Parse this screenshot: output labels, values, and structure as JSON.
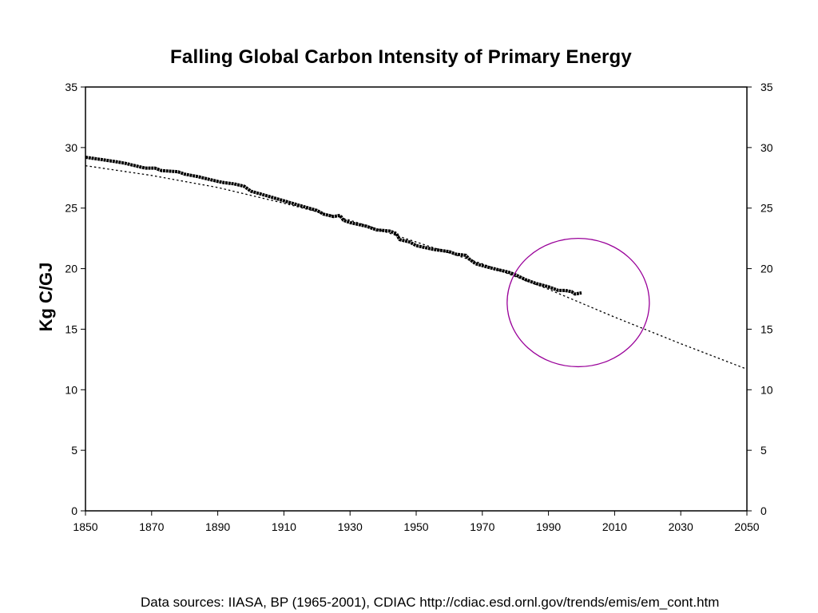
{
  "chart_data": {
    "type": "line",
    "title": "Falling Global Carbon Intensity of Primary Energy",
    "ylabel": "Kg C/GJ",
    "xlabel": "",
    "xlim": [
      1850,
      2050
    ],
    "ylim": [
      0,
      35
    ],
    "x_ticks": [
      "1850",
      "1870",
      "1890",
      "1910",
      "1930",
      "1950",
      "1970",
      "1990",
      "2010",
      "2030",
      "2050"
    ],
    "y_ticks": [
      "0",
      "5",
      "10",
      "15",
      "20",
      "25",
      "30",
      "35"
    ],
    "y_ticks_right": [
      "0",
      "5",
      "10",
      "15",
      "20",
      "25",
      "30",
      "35"
    ],
    "grid": false,
    "series": [
      {
        "style": "thick-marker-line",
        "color": "#000000",
        "points": [
          [
            1850,
            29.2
          ],
          [
            1855,
            29.0
          ],
          [
            1860,
            28.8
          ],
          [
            1862,
            28.7
          ],
          [
            1865,
            28.5
          ],
          [
            1868,
            28.3
          ],
          [
            1871,
            28.3
          ],
          [
            1873,
            28.1
          ],
          [
            1878,
            28.0
          ],
          [
            1880,
            27.8
          ],
          [
            1884,
            27.6
          ],
          [
            1887,
            27.4
          ],
          [
            1890,
            27.2
          ],
          [
            1892,
            27.1
          ],
          [
            1895,
            27.0
          ],
          [
            1898,
            26.8
          ],
          [
            1900,
            26.4
          ],
          [
            1905,
            26.0
          ],
          [
            1910,
            25.6
          ],
          [
            1915,
            25.2
          ],
          [
            1920,
            24.8
          ],
          [
            1922,
            24.5
          ],
          [
            1925,
            24.3
          ],
          [
            1927,
            24.4
          ],
          [
            1928,
            24.0
          ],
          [
            1930,
            23.8
          ],
          [
            1935,
            23.5
          ],
          [
            1938,
            23.2
          ],
          [
            1942,
            23.1
          ],
          [
            1944,
            22.9
          ],
          [
            1945,
            22.4
          ],
          [
            1948,
            22.2
          ],
          [
            1950,
            21.9
          ],
          [
            1955,
            21.6
          ],
          [
            1960,
            21.4
          ],
          [
            1962,
            21.2
          ],
          [
            1965,
            21.1
          ],
          [
            1966,
            20.8
          ],
          [
            1968,
            20.4
          ],
          [
            1972,
            20.1
          ],
          [
            1975,
            19.9
          ],
          [
            1978,
            19.7
          ],
          [
            1980,
            19.5
          ],
          [
            1983,
            19.1
          ],
          [
            1986,
            18.8
          ],
          [
            1990,
            18.5
          ],
          [
            1993,
            18.2
          ],
          [
            1995,
            18.2
          ],
          [
            1997,
            18.1
          ],
          [
            1998,
            17.9
          ],
          [
            2000,
            18.0
          ]
        ]
      },
      {
        "style": "dotted-trend",
        "color": "#000000",
        "points": [
          [
            1850,
            28.5
          ],
          [
            1870,
            27.7
          ],
          [
            1890,
            26.7
          ],
          [
            1910,
            25.4
          ],
          [
            1930,
            24.0
          ],
          [
            1950,
            22.2
          ],
          [
            1970,
            20.4
          ],
          [
            1990,
            18.3
          ],
          [
            2010,
            16.0
          ],
          [
            2030,
            13.8
          ],
          [
            2050,
            11.7
          ]
        ]
      }
    ],
    "annotation": {
      "shape": "ellipse",
      "color": "#990099",
      "center": [
        1999,
        17.2
      ],
      "rx_years": 21.5,
      "ry_units": 5.3
    }
  },
  "footnote": "Data sources: IIASA, BP (1965-2001), CDIAC http://cdiac.esd.ornl.gov/trends/emis/em_cont.htm"
}
